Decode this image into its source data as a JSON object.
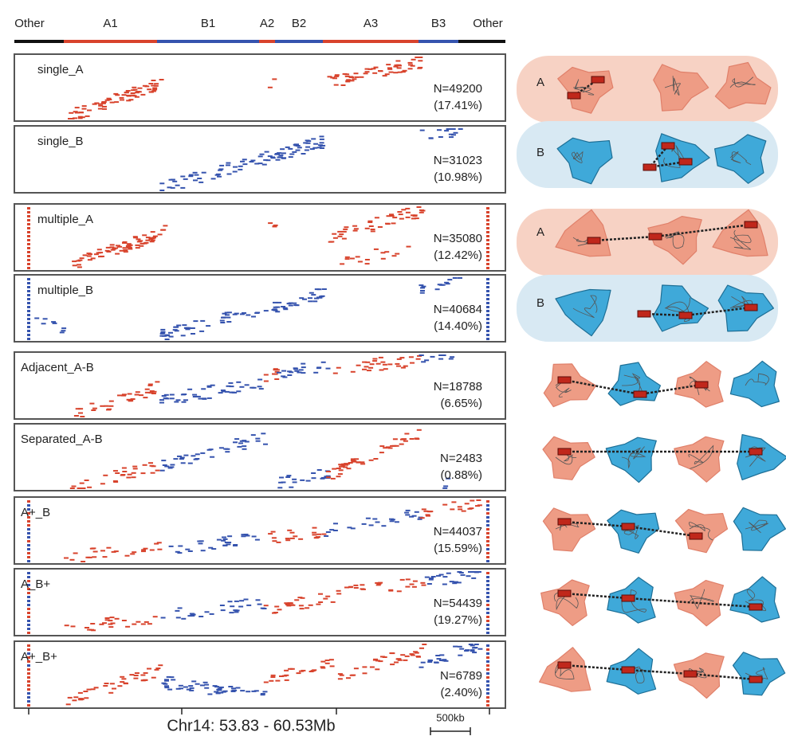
{
  "track": {
    "segments": [
      "Other",
      "A1",
      "B1",
      "A2",
      "B2",
      "A3",
      "B3",
      "Other"
    ]
  },
  "panels": [
    {
      "label": "single_A",
      "count": "N=49200",
      "percent": "(17.41%)"
    },
    {
      "label": "single_B",
      "count": "N=31023",
      "percent": "(10.98%)"
    },
    {
      "label": "multiple_A",
      "count": "N=35080",
      "percent": "(12.42%)"
    },
    {
      "label": "multiple_B",
      "count": "N=40684",
      "percent": "(14.40%)"
    },
    {
      "label": "Adjacent_A-B",
      "count": "N=18788",
      "percent": "(6.65%)"
    },
    {
      "label": "Separated_A-B",
      "count": "N=2483",
      "percent": "(0.88%)"
    },
    {
      "label": "A+_B",
      "count": "N=44037",
      "percent": "(15.59%)"
    },
    {
      "label": "A_B+",
      "count": "N=54439",
      "percent": "(19.27%)"
    },
    {
      "label": "A+_B+",
      "count": "N=6789",
      "percent": "(2.40%)"
    }
  ],
  "axis": {
    "label": "Chr14: 53.83 - 60.53Mb",
    "scale": "500kb"
  },
  "diagram": {
    "labels": [
      "A",
      "B",
      "A",
      "B"
    ]
  }
}
